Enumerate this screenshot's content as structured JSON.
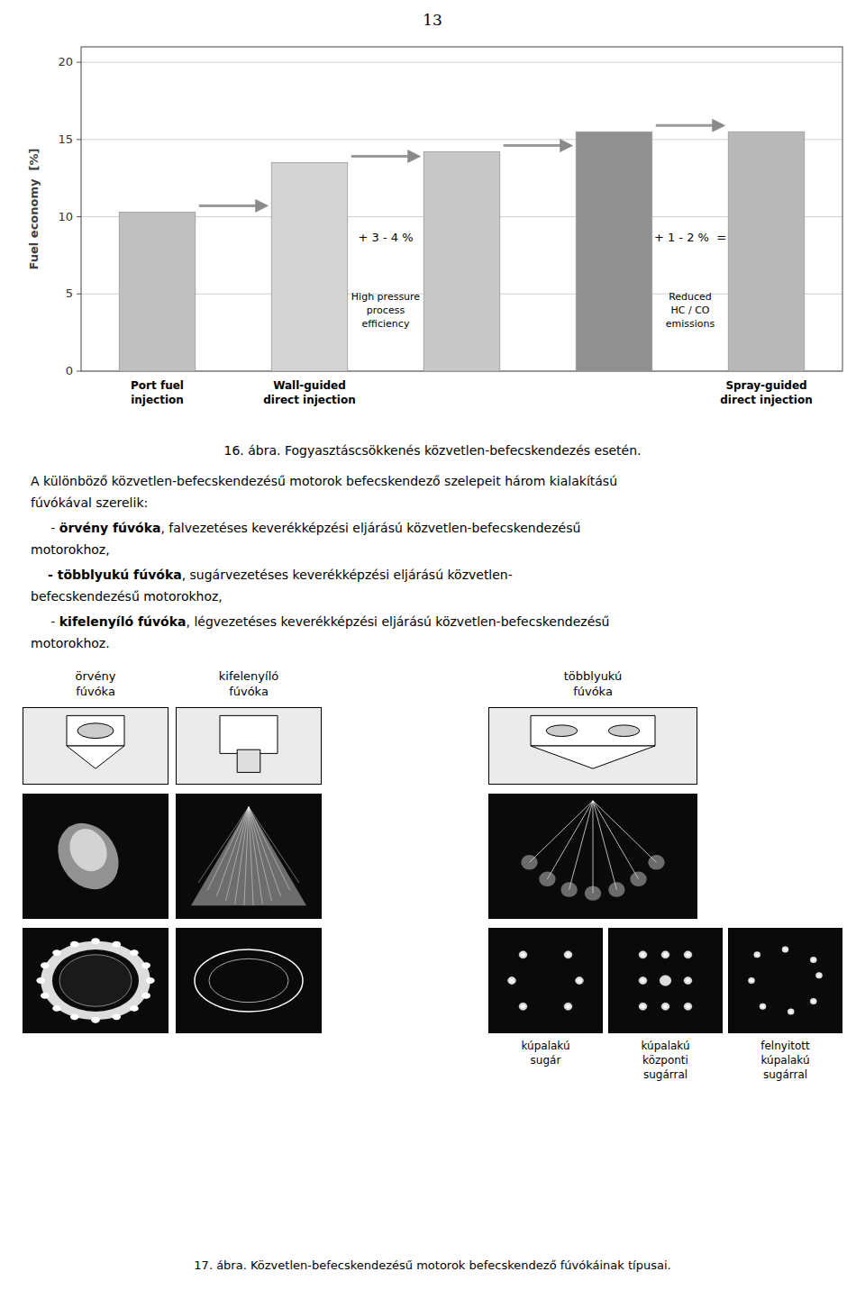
{
  "background_color": "#ffffff",
  "chart_data": {
    "type": "bar",
    "categories": [
      "Port fuel\ninjection",
      "Wall-guided\ndirect injection",
      null,
      null,
      "Spray-guided\ndirect injection"
    ],
    "values": [
      10.3,
      13.5,
      14.2,
      15.5,
      15.5
    ],
    "colors": [
      "#c0c0c0",
      "#d4d4d4",
      "#c8c8c8",
      "#909090",
      "#b8b8b8"
    ],
    "y_label": "Fuel economy  [%]",
    "ylim": [
      0,
      21
    ],
    "yticks": [
      0,
      5,
      10,
      15,
      20
    ],
    "grid": true,
    "annotations": [
      "+ 3 - 4 %",
      "+ 1 - 2 %  =",
      "High pressure\nprocess\nefficiency",
      "Reduced\nHC / CO\nemissions"
    ]
  },
  "page": {
    "page_number": "13",
    "captions": [
      "16. ábra. Fogyasztáscsökkenés közvetlen-befecskendezés esetén.",
      "17. ábra. Közvetlen-befecskendezésű motorok befecskendező fúvókáinak típusai."
    ],
    "paragraph": [
      "A különböző közvetlen-befecskendezésű motorok befecskendező szelepeit három kialakítású",
      "fúvókával szerelik:"
    ],
    "bullets": [
      {
        "pre": "     - ",
        "bold": "örvény fúvóka",
        "rest": ", falvezetéses keverékképzési eljárású közvetlen-befecskendezésű",
        "cont": "motorokhoz,"
      },
      {
        "bold": "- többlyukú fúvóka",
        "rest": ", sugárvezetéses keverékképzési eljárású közvetlen-",
        "cont": "befecskendezésű motorokhoz,"
      },
      {
        "pre": "     - ",
        "bold": "kifelenyíló fúvóka",
        "rest": ", légvezetéses keverékképzési eljárású közvetlen-befecskendezésű",
        "cont": "motorokhoz."
      }
    ],
    "nozzle_labels": [
      "örvény\nfúvóka",
      "kifelenyíló\nfúvóka",
      "többlyukú\nfúvóka"
    ],
    "cross_section_labels": [
      "kúpalakú\nsugár",
      "kúpalakú\nközponti\nsugárral",
      "felnyitott\nkúpalakú\nsugárral"
    ]
  }
}
